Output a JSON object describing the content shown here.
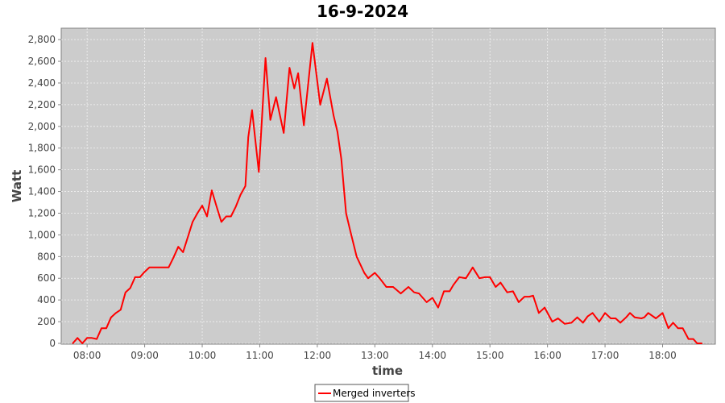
{
  "chart_data": {
    "type": "line",
    "title": "16-9-2024",
    "xlabel": "time",
    "ylabel": "Watt",
    "xlim": [
      "07:33",
      "18:55"
    ],
    "ylim": [
      0,
      2900
    ],
    "grid": true,
    "legend_position": "bottom",
    "background_color": "#cccccc",
    "x_ticks": [
      "08:00",
      "09:00",
      "10:00",
      "11:00",
      "12:00",
      "13:00",
      "14:00",
      "15:00",
      "16:00",
      "17:00",
      "18:00"
    ],
    "y_ticks": [
      "0",
      "200",
      "400",
      "600",
      "800",
      "1,000",
      "1,200",
      "1,400",
      "1,600",
      "1,800",
      "2,000",
      "2,200",
      "2,400",
      "2,600",
      "2,800"
    ],
    "series": [
      {
        "name": "Merged inverters",
        "color": "#ff0000",
        "points": [
          [
            "07:45",
            0
          ],
          [
            "07:50",
            50
          ],
          [
            "07:55",
            0
          ],
          [
            "08:00",
            50
          ],
          [
            "08:05",
            50
          ],
          [
            "08:10",
            40
          ],
          [
            "08:15",
            140
          ],
          [
            "08:20",
            140
          ],
          [
            "08:25",
            240
          ],
          [
            "08:30",
            280
          ],
          [
            "08:35",
            310
          ],
          [
            "08:40",
            470
          ],
          [
            "08:45",
            510
          ],
          [
            "08:50",
            610
          ],
          [
            "08:55",
            610
          ],
          [
            "09:00",
            660
          ],
          [
            "09:05",
            700
          ],
          [
            "09:10",
            700
          ],
          [
            "09:15",
            700
          ],
          [
            "09:20",
            700
          ],
          [
            "09:25",
            700
          ],
          [
            "09:30",
            790
          ],
          [
            "09:35",
            890
          ],
          [
            "09:40",
            840
          ],
          [
            "09:45",
            980
          ],
          [
            "09:50",
            1120
          ],
          [
            "09:55",
            1200
          ],
          [
            "10:00",
            1270
          ],
          [
            "10:05",
            1170
          ],
          [
            "10:10",
            1410
          ],
          [
            "10:15",
            1260
          ],
          [
            "10:20",
            1120
          ],
          [
            "10:25",
            1170
          ],
          [
            "10:30",
            1170
          ],
          [
            "10:35",
            1260
          ],
          [
            "10:40",
            1370
          ],
          [
            "10:45",
            1450
          ],
          [
            "10:48",
            1900
          ],
          [
            "10:52",
            2150
          ],
          [
            "10:59",
            1580
          ],
          [
            "11:06",
            2630
          ],
          [
            "11:11",
            2060
          ],
          [
            "11:17",
            2270
          ],
          [
            "11:25",
            1940
          ],
          [
            "11:31",
            2540
          ],
          [
            "11:36",
            2350
          ],
          [
            "11:40",
            2490
          ],
          [
            "11:46",
            2010
          ],
          [
            "11:50",
            2350
          ],
          [
            "11:55",
            2770
          ],
          [
            "12:03",
            2200
          ],
          [
            "12:10",
            2440
          ],
          [
            "12:17",
            2100
          ],
          [
            "12:21",
            1950
          ],
          [
            "12:25",
            1700
          ],
          [
            "12:30",
            1200
          ],
          [
            "12:34",
            1050
          ],
          [
            "12:41",
            800
          ],
          [
            "12:49",
            650
          ],
          [
            "12:53",
            600
          ],
          [
            "13:00",
            650
          ],
          [
            "13:05",
            600
          ],
          [
            "13:12",
            520
          ],
          [
            "13:19",
            520
          ],
          [
            "13:27",
            460
          ],
          [
            "13:35",
            520
          ],
          [
            "13:41",
            470
          ],
          [
            "13:46",
            460
          ],
          [
            "13:54",
            380
          ],
          [
            "14:00",
            420
          ],
          [
            "14:06",
            330
          ],
          [
            "14:12",
            480
          ],
          [
            "14:18",
            480
          ],
          [
            "14:22",
            540
          ],
          [
            "14:28",
            610
          ],
          [
            "14:35",
            600
          ],
          [
            "14:42",
            700
          ],
          [
            "14:49",
            600
          ],
          [
            "14:55",
            610
          ],
          [
            "15:00",
            610
          ],
          [
            "15:06",
            520
          ],
          [
            "15:11",
            560
          ],
          [
            "15:18",
            470
          ],
          [
            "15:24",
            480
          ],
          [
            "15:30",
            380
          ],
          [
            "15:36",
            430
          ],
          [
            "15:41",
            430
          ],
          [
            "15:45",
            440
          ],
          [
            "15:51",
            280
          ],
          [
            "15:57",
            330
          ],
          [
            "16:05",
            200
          ],
          [
            "16:11",
            230
          ],
          [
            "16:18",
            180
          ],
          [
            "16:25",
            190
          ],
          [
            "16:31",
            240
          ],
          [
            "16:37",
            190
          ],
          [
            "16:42",
            250
          ],
          [
            "16:47",
            280
          ],
          [
            "16:54",
            200
          ],
          [
            "17:00",
            280
          ],
          [
            "17:06",
            230
          ],
          [
            "17:11",
            230
          ],
          [
            "17:16",
            190
          ],
          [
            "17:22",
            240
          ],
          [
            "17:26",
            280
          ],
          [
            "17:31",
            240
          ],
          [
            "17:38",
            230
          ],
          [
            "17:41",
            240
          ],
          [
            "17:45",
            280
          ],
          [
            "17:53",
            230
          ],
          [
            "18:00",
            280
          ],
          [
            "18:06",
            140
          ],
          [
            "18:11",
            190
          ],
          [
            "18:16",
            140
          ],
          [
            "18:21",
            140
          ],
          [
            "18:27",
            40
          ],
          [
            "18:32",
            40
          ],
          [
            "18:36",
            0
          ],
          [
            "18:41",
            0
          ]
        ]
      }
    ]
  }
}
